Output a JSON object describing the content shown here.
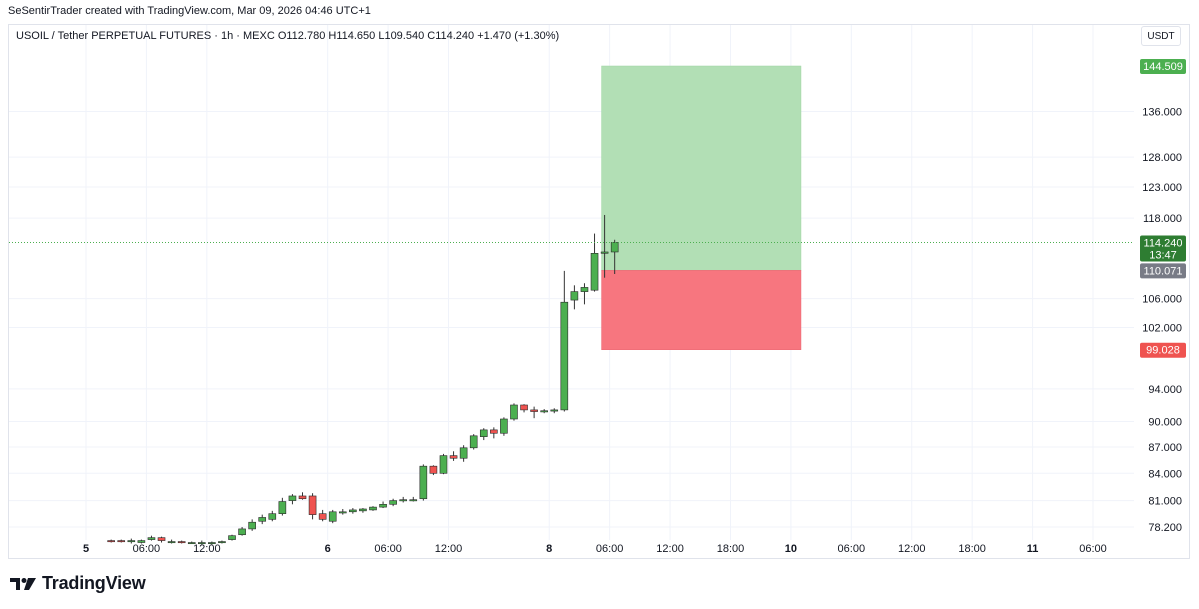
{
  "header": {
    "title": "SeSentirTrader created with TradingView.com, Mar 09, 2026 04:46 UTC+1"
  },
  "symbol_info": "USOIL / Tether PERPETUAL FUTURES · 1h · MEXC  O112.780  H114.650  L109.540  C114.240  +1.470 (+1.30%)",
  "currency": "USDT",
  "brand": "TradingView",
  "colors": {
    "up": "#26a69a",
    "up_body": "#4caf50",
    "down": "#ef5350",
    "profit_zone": "#b2dfb5",
    "loss_zone": "#f7767f",
    "grid": "#f0f3fa"
  },
  "chart_data": {
    "type": "candlestick",
    "y_scale": "log",
    "ylim": [
      76.5,
      150
    ],
    "y_ticks": [
      "136.000",
      "128.000",
      "123.000",
      "118.000",
      "106.000",
      "102.000",
      "94.000",
      "90.000",
      "87.000",
      "84.000",
      "81.000",
      "78.200"
    ],
    "x_ticks": [
      {
        "label": "5",
        "bold": true,
        "slot": 0
      },
      {
        "label": "06:00",
        "slot": 6
      },
      {
        "label": "12:00",
        "slot": 12
      },
      {
        "label": "6",
        "bold": true,
        "slot": 24
      },
      {
        "label": "06:00",
        "slot": 30
      },
      {
        "label": "12:00",
        "slot": 36
      },
      {
        "label": "8",
        "bold": true,
        "slot": 46
      },
      {
        "label": "06:00",
        "slot": 52
      },
      {
        "label": "12:00",
        "slot": 58
      },
      {
        "label": "18:00",
        "slot": 64
      },
      {
        "label": "10",
        "bold": true,
        "slot": 70
      },
      {
        "label": "06:00",
        "slot": 76
      },
      {
        "label": "12:00",
        "slot": 82
      },
      {
        "label": "18:00",
        "slot": 88
      },
      {
        "label": "11",
        "bold": true,
        "slot": 94
      },
      {
        "label": "06:00",
        "slot": 100
      }
    ],
    "candles": [
      {
        "o": 76.8,
        "h": 76.9,
        "l": 76.6,
        "c": 76.7
      },
      {
        "o": 76.8,
        "h": 76.9,
        "l": 76.6,
        "c": 76.7
      },
      {
        "o": 76.7,
        "h": 77.0,
        "l": 76.5,
        "c": 76.8
      },
      {
        "o": 76.6,
        "h": 76.9,
        "l": 76.5,
        "c": 76.8
      },
      {
        "o": 76.9,
        "h": 77.3,
        "l": 76.8,
        "c": 77.1
      },
      {
        "o": 77.1,
        "h": 77.2,
        "l": 76.6,
        "c": 76.8
      },
      {
        "o": 76.6,
        "h": 76.9,
        "l": 76.5,
        "c": 76.7
      },
      {
        "o": 76.7,
        "h": 76.8,
        "l": 76.5,
        "c": 76.6
      },
      {
        "o": 76.6,
        "h": 76.7,
        "l": 76.5,
        "c": 76.6
      },
      {
        "o": 76.6,
        "h": 76.8,
        "l": 76.4,
        "c": 76.6
      },
      {
        "o": 76.5,
        "h": 76.7,
        "l": 76.4,
        "c": 76.6
      },
      {
        "o": 76.6,
        "h": 76.8,
        "l": 76.5,
        "c": 76.7
      },
      {
        "o": 76.9,
        "h": 77.4,
        "l": 76.8,
        "c": 77.3
      },
      {
        "o": 77.4,
        "h": 78.2,
        "l": 77.3,
        "c": 78.0
      },
      {
        "o": 78.0,
        "h": 79.0,
        "l": 77.8,
        "c": 78.7
      },
      {
        "o": 78.8,
        "h": 79.5,
        "l": 78.5,
        "c": 79.2
      },
      {
        "o": 79.0,
        "h": 79.9,
        "l": 78.8,
        "c": 79.6
      },
      {
        "o": 79.6,
        "h": 81.3,
        "l": 79.4,
        "c": 80.9
      },
      {
        "o": 81.0,
        "h": 81.7,
        "l": 80.6,
        "c": 81.5
      },
      {
        "o": 81.5,
        "h": 81.9,
        "l": 81.1,
        "c": 81.2
      },
      {
        "o": 81.5,
        "h": 81.8,
        "l": 79.0,
        "c": 79.5
      },
      {
        "o": 79.6,
        "h": 80.0,
        "l": 78.8,
        "c": 79.0
      },
      {
        "o": 78.8,
        "h": 80.0,
        "l": 78.6,
        "c": 79.8
      },
      {
        "o": 79.8,
        "h": 80.1,
        "l": 79.5,
        "c": 79.8
      },
      {
        "o": 79.8,
        "h": 80.2,
        "l": 79.6,
        "c": 80.0
      },
      {
        "o": 79.9,
        "h": 80.2,
        "l": 79.7,
        "c": 80.1
      },
      {
        "o": 80.0,
        "h": 80.4,
        "l": 79.9,
        "c": 80.3
      },
      {
        "o": 80.3,
        "h": 80.9,
        "l": 80.2,
        "c": 80.6
      },
      {
        "o": 80.6,
        "h": 81.2,
        "l": 80.4,
        "c": 81.0
      },
      {
        "o": 81.0,
        "h": 81.4,
        "l": 80.8,
        "c": 81.1
      },
      {
        "o": 81.1,
        "h": 81.4,
        "l": 80.9,
        "c": 81.1
      },
      {
        "o": 81.2,
        "h": 85.0,
        "l": 81.0,
        "c": 84.8
      },
      {
        "o": 84.8,
        "h": 84.9,
        "l": 83.8,
        "c": 84.0
      },
      {
        "o": 84.0,
        "h": 86.2,
        "l": 83.9,
        "c": 86.0
      },
      {
        "o": 86.0,
        "h": 86.5,
        "l": 85.4,
        "c": 85.7
      },
      {
        "o": 85.7,
        "h": 87.2,
        "l": 85.3,
        "c": 86.9
      },
      {
        "o": 86.9,
        "h": 88.5,
        "l": 86.7,
        "c": 88.3
      },
      {
        "o": 88.2,
        "h": 89.2,
        "l": 87.8,
        "c": 89.0
      },
      {
        "o": 89.0,
        "h": 89.3,
        "l": 88.0,
        "c": 88.6
      },
      {
        "o": 88.6,
        "h": 90.5,
        "l": 88.3,
        "c": 90.3
      },
      {
        "o": 90.3,
        "h": 92.2,
        "l": 90.1,
        "c": 92.0
      },
      {
        "o": 92.0,
        "h": 92.1,
        "l": 91.1,
        "c": 91.4
      },
      {
        "o": 91.4,
        "h": 91.8,
        "l": 90.4,
        "c": 91.2
      },
      {
        "o": 91.2,
        "h": 91.5,
        "l": 91.0,
        "c": 91.3
      },
      {
        "o": 91.3,
        "h": 91.6,
        "l": 91.0,
        "c": 91.4
      },
      {
        "o": 91.4,
        "h": 110.0,
        "l": 91.2,
        "c": 105.5
      },
      {
        "o": 105.8,
        "h": 107.9,
        "l": 104.5,
        "c": 107.0
      },
      {
        "o": 107.0,
        "h": 108.2,
        "l": 105.2,
        "c": 107.6
      },
      {
        "o": 107.2,
        "h": 115.6,
        "l": 107.0,
        "c": 112.6
      },
      {
        "o": 112.6,
        "h": 118.5,
        "l": 109.0,
        "c": 112.8
      },
      {
        "o": 112.8,
        "h": 114.65,
        "l": 109.54,
        "c": 114.24
      }
    ],
    "price_line": 114.24,
    "position": {
      "type": "long",
      "target": 144.509,
      "entry": 110.071,
      "stop": 99.028,
      "start_slot": 51,
      "end_slot": 71
    },
    "price_labels": {
      "target": "144.509",
      "current": "114.240",
      "countdown": "13:47",
      "entry": "110.071",
      "stop": "99.028"
    }
  }
}
